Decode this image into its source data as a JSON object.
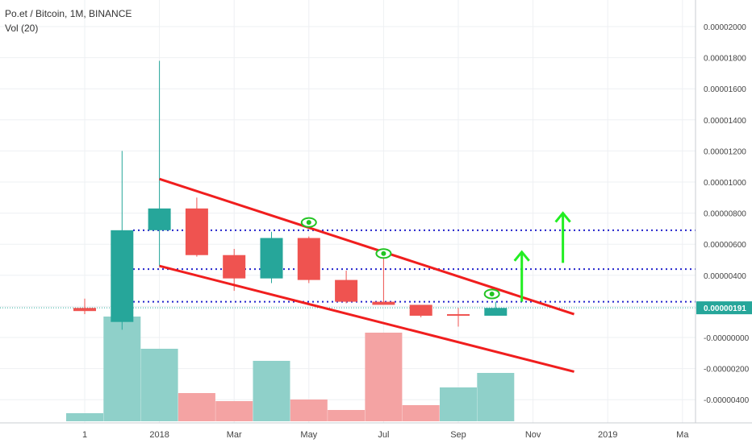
{
  "header": {
    "title": "Po.et / Bitcoin, 1M, BINANCE",
    "volume_label": "Vol (20)"
  },
  "colors": {
    "up": "#26a69a",
    "down": "#ef5350",
    "vol_up": "#8fd0c9",
    "vol_down": "#f4a3a3",
    "trendline": "#f01e1e",
    "dotted": "#2222cc",
    "arrow": "#22ee22",
    "price_badge": "#26a69a"
  },
  "chart_data": {
    "type": "candlestick",
    "title": "Po.et / Bitcoin, 1M, BINANCE",
    "y_axis_ticks": [
      "0.00002000",
      "0.00001800",
      "0.00001600",
      "0.00001400",
      "0.00001200",
      "0.00001000",
      "0.00000800",
      "0.00000600",
      "0.00000400",
      "0.00000200",
      "0.00000191",
      "-0.00000000",
      "-0.00000200",
      "-0.00000400"
    ],
    "y_tick_values": [
      2e-05,
      1.8e-05,
      1.6e-05,
      1.4e-05,
      1.2e-05,
      1e-05,
      8e-06,
      6e-06,
      4e-06,
      2e-06,
      0.0
    ],
    "y_tick_labels": [
      "0.00002000",
      "0.00001800",
      "0.00001600",
      "0.00001400",
      "0.00001200",
      "0.00001000",
      "0.00000800",
      "0.00000600",
      "0.00000400",
      "0.00000200",
      "-0.00000000"
    ],
    "y_neg_tick_values": [
      -2e-06,
      -4e-06
    ],
    "y_neg_tick_labels": [
      "-0.00000200",
      "-0.00000400"
    ],
    "ylim": [
      -5.2e-06,
      2.1e-05
    ],
    "x_tick_labels": [
      "1",
      "2018",
      "Mar",
      "May",
      "Jul",
      "Sep",
      "Nov",
      "2019",
      "Ma"
    ],
    "x_tick_index": [
      0,
      2,
      4,
      6,
      8,
      10,
      12,
      14,
      16
    ],
    "bar_count": 18,
    "candles": [
      {
        "period": "Nov 2017",
        "open": 1.9e-06,
        "high": 2.5e-06,
        "low": 1.5e-06,
        "close": 1.7e-06
      },
      {
        "period": "Dec 2017",
        "open": 1e-06,
        "high": 1.2e-05,
        "low": 5e-07,
        "close": 6.9e-06
      },
      {
        "period": "Jan 2018",
        "open": 6.9e-06,
        "high": 1.78e-05,
        "low": 4.6e-06,
        "close": 8.3e-06
      },
      {
        "period": "Feb 2018",
        "open": 8.3e-06,
        "high": 9e-06,
        "low": 5.2e-06,
        "close": 5.3e-06
      },
      {
        "period": "Mar 2018",
        "open": 5.3e-06,
        "high": 5.7e-06,
        "low": 3e-06,
        "close": 3.8e-06
      },
      {
        "period": "Apr 2018",
        "open": 3.8e-06,
        "high": 6.8e-06,
        "low": 3.5e-06,
        "close": 6.4e-06
      },
      {
        "period": "May 2018",
        "open": 6.4e-06,
        "high": 6.5e-06,
        "low": 3.5e-06,
        "close": 3.7e-06
      },
      {
        "period": "Jun 2018",
        "open": 3.7e-06,
        "high": 4.3e-06,
        "low": 2.2e-06,
        "close": 2.3e-06
      },
      {
        "period": "Jul 2018",
        "open": 2.3e-06,
        "high": 5.1e-06,
        "low": 2.1e-06,
        "close": 2.1e-06
      },
      {
        "period": "Aug 2018",
        "open": 2.1e-06,
        "high": 2.1e-06,
        "low": 1.3e-06,
        "close": 1.4e-06
      },
      {
        "period": "Sep 2018",
        "open": 1.5e-06,
        "high": 1.9e-06,
        "low": 7e-07,
        "close": 1.4e-06
      },
      {
        "period": "Oct 2018",
        "open": 1.4e-06,
        "high": 2.3e-06,
        "low": 1.4e-06,
        "close": 1.9e-06
      }
    ],
    "volume": {
      "unit": "relative",
      "values": [
        0.1,
        1.3,
        0.9,
        0.35,
        0.25,
        0.75,
        0.27,
        0.14,
        1.1,
        0.2,
        0.42,
        0.6
      ],
      "direction": [
        "up",
        "up",
        "up",
        "down",
        "down",
        "up",
        "down",
        "down",
        "down",
        "down",
        "up",
        "up"
      ]
    },
    "current_price_label": "0.00000191",
    "current_price": 1.91e-06,
    "horizontal_levels": [
      6.9e-06,
      4.4e-06,
      2.3e-06
    ],
    "trendlines": [
      {
        "from": [
          2,
          1.02e-05
        ],
        "to": [
          13.1,
          1.5e-06
        ]
      },
      {
        "from": [
          2,
          4.6e-06
        ],
        "to": [
          13.1,
          -2.2e-06
        ]
      }
    ],
    "eye_markers": [
      {
        "x": 6,
        "y": 7.4e-06
      },
      {
        "x": 8,
        "y": 5.4e-06
      },
      {
        "x": 10.9,
        "y": 2.8e-06
      }
    ],
    "up_arrows": [
      {
        "x": 11.7,
        "from": 2.3e-06,
        "to": 5.5e-06
      },
      {
        "x": 12.8,
        "from": 4.8e-06,
        "to": 8e-06
      }
    ]
  }
}
